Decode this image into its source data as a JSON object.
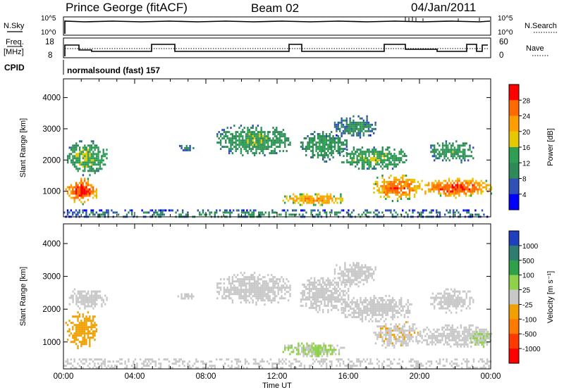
{
  "header": {
    "station": "Prince George (fitACF)",
    "beam": "Beam 02",
    "date": "04/Jan/2011"
  },
  "panels": {
    "nsky_label": "N.Sky",
    "nsearch_label": "N.Search",
    "freq_label_1": "Freq.",
    "freq_label_2": "[MHz]",
    "nave_label": "Nave",
    "cpid_label": "CPID",
    "cpid_value": "normalsound (fast) 157",
    "nsky_ticks": [
      "10^5",
      "10^0"
    ],
    "nsearch_ticks": [
      "10^5",
      "10^0"
    ],
    "freq_ticks": [
      "18",
      "8"
    ],
    "nave_ticks": [
      "60",
      "0"
    ]
  },
  "chart_data": [
    {
      "type": "heatmap",
      "xlabel": "",
      "ylabel": "Slant Range [km]",
      "x_ticks": [
        "00:00",
        "04:00",
        "08:00",
        "12:00",
        "16:00",
        "20:00",
        "00:00"
      ],
      "x_hours": [
        0,
        4,
        8,
        12,
        16,
        20,
        24
      ],
      "xlim": [
        0,
        24
      ],
      "y_ticks": [
        1000,
        2000,
        3000,
        4000
      ],
      "ylim": [
        180,
        4600
      ],
      "colorbar_label": "Power [dB]",
      "colorbar_ticks": [
        "28",
        "24",
        "20",
        "16",
        "12",
        "8",
        "4"
      ],
      "colorbar_values": [
        28,
        24,
        20,
        16,
        12,
        8,
        4
      ],
      "colorbar_colors": [
        "#ff0000",
        "#ff6a00",
        "#ff9e00",
        "#e6c800",
        "#2e9e55",
        "#2e8b57",
        "#3050b8",
        "#0000ff"
      ],
      "clim": [
        0,
        32
      ],
      "regions": [
        {
          "h0": 0.1,
          "h1": 1.9,
          "r0": 600,
          "r1": 1500,
          "v": 24
        },
        {
          "h0": 0.2,
          "h1": 2.4,
          "r0": 1500,
          "r1": 2700,
          "v": 13
        },
        {
          "h0": 6.4,
          "h1": 7.3,
          "r0": 2300,
          "r1": 2550,
          "v": 9
        },
        {
          "h0": 8.6,
          "h1": 12.7,
          "r0": 2100,
          "r1": 3200,
          "v": 12
        },
        {
          "h0": 12.3,
          "h1": 15.8,
          "r0": 550,
          "r1": 1000,
          "v": 19
        },
        {
          "h0": 13.3,
          "h1": 15.9,
          "r0": 1950,
          "r1": 3000,
          "v": 11
        },
        {
          "h0": 15.2,
          "h1": 17.5,
          "r0": 2700,
          "r1": 3500,
          "v": 9
        },
        {
          "h0": 15.6,
          "h1": 19.3,
          "r0": 1700,
          "r1": 2500,
          "v": 13
        },
        {
          "h0": 17.4,
          "h1": 20.0,
          "r0": 700,
          "r1": 1600,
          "v": 22
        },
        {
          "h0": 20.0,
          "h1": 24.0,
          "r0": 800,
          "r1": 1500,
          "v": 23
        },
        {
          "h0": 20.6,
          "h1": 23.0,
          "r0": 1900,
          "r1": 2700,
          "v": 11
        },
        {
          "h0": 0.0,
          "h1": 24.0,
          "r0": 190,
          "r1": 420,
          "v": 10
        }
      ]
    },
    {
      "type": "heatmap",
      "xlabel": "Time UT",
      "ylabel": "Slant Range [km]",
      "x_ticks": [
        "00:00",
        "04:00",
        "08:00",
        "12:00",
        "16:00",
        "20:00",
        "00:00"
      ],
      "x_hours": [
        0,
        4,
        8,
        12,
        16,
        20,
        24
      ],
      "xlim": [
        0,
        24
      ],
      "y_ticks": [
        1000,
        2000,
        3000,
        4000
      ],
      "ylim": [
        180,
        4600
      ],
      "colorbar_label": "Velocity [m s⁻¹]",
      "colorbar_ticks": [
        "1000",
        "500",
        "100",
        "25",
        "-25",
        "-100",
        "-500",
        "-1000"
      ],
      "colorbar_values": [
        1000,
        500,
        100,
        25,
        -25,
        -100,
        -500,
        -1000
      ],
      "colorbar_colors": [
        "#1f3fbf",
        "#2e7d6e",
        "#2fa04a",
        "#8fd24a",
        "#c8c8c8",
        "#f0a000",
        "#ff7a00",
        "#ff3a00",
        "#ff0000"
      ],
      "clim": [
        -1200,
        1200
      ],
      "regions": [
        {
          "h0": 0.1,
          "h1": 1.9,
          "r0": 800,
          "r1": 2000,
          "v": -200
        },
        {
          "h0": 0.3,
          "h1": 2.4,
          "r0": 2000,
          "r1": 2700,
          "v": 0
        },
        {
          "h0": 6.4,
          "h1": 7.3,
          "r0": 2300,
          "r1": 2550,
          "v": 0
        },
        {
          "h0": 8.6,
          "h1": 12.7,
          "r0": 2100,
          "r1": 3200,
          "v": 0
        },
        {
          "h0": 12.3,
          "h1": 15.8,
          "r0": 550,
          "r1": 1050,
          "v": 150
        },
        {
          "h0": 13.3,
          "h1": 16.0,
          "r0": 1900,
          "r1": 3100,
          "v": 0
        },
        {
          "h0": 15.2,
          "h1": 17.5,
          "r0": 2700,
          "r1": 3500,
          "v": 0
        },
        {
          "h0": 15.6,
          "h1": 19.5,
          "r0": 1600,
          "r1": 2500,
          "v": 0
        },
        {
          "h0": 17.4,
          "h1": 20.0,
          "r0": 800,
          "r1": 1700,
          "v": -90
        },
        {
          "h0": 20.0,
          "h1": 24.0,
          "r0": 850,
          "r1": 1600,
          "v": 0
        },
        {
          "h0": 22.8,
          "h1": 24.0,
          "r0": 850,
          "r1": 1400,
          "v": 150
        },
        {
          "h0": 20.6,
          "h1": 23.0,
          "r0": 1900,
          "r1": 2700,
          "v": 0
        },
        {
          "h0": 0.0,
          "h1": 24.0,
          "r0": 190,
          "r1": 500,
          "v": 60
        }
      ]
    }
  ]
}
